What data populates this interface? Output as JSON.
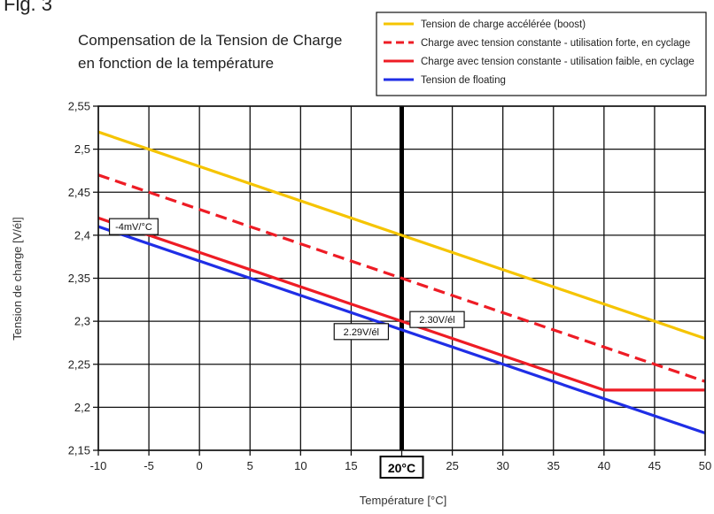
{
  "figure_label": "Fig. 3",
  "chart_data": {
    "type": "line",
    "title_lines": [
      "Compensation de la Tension de Charge",
      "en fonction de la température"
    ],
    "xlabel": "Température [°C]",
    "ylabel": "Tension de charge [V/él]",
    "xlim": [
      -10,
      50
    ],
    "ylim": [
      2.15,
      2.55
    ],
    "xticks": [
      -10,
      -5,
      0,
      5,
      10,
      15,
      20,
      25,
      30,
      35,
      40,
      45,
      50
    ],
    "xtick_labels": [
      "-10",
      "-5",
      "0",
      "5",
      "10",
      "15",
      "20°C",
      "25",
      "30",
      "35",
      "40",
      "45",
      "50"
    ],
    "yticks": [
      2.15,
      2.2,
      2.25,
      2.3,
      2.35,
      2.4,
      2.45,
      2.5,
      2.55
    ],
    "ytick_labels": [
      "2,15",
      "2,2",
      "2,25",
      "2,3",
      "2,35",
      "2,4",
      "2,45",
      "2,5",
      "2,55"
    ],
    "grid": true,
    "legend_position": "top-right",
    "reference_line": {
      "x": 20
    },
    "series": [
      {
        "name": "Tension de charge accélérée (boost)",
        "color": "#f5c400",
        "style": "solid",
        "points": [
          [
            -10,
            2.52
          ],
          [
            50,
            2.28
          ]
        ]
      },
      {
        "name": "Charge avec tension constante - utilisation forte, en cyclage",
        "color": "#ee1c25",
        "style": "dashed",
        "points": [
          [
            -10,
            2.47
          ],
          [
            50,
            2.23
          ]
        ]
      },
      {
        "name": "Charge avec tension constante - utilisation faible, en cyclage",
        "color": "#ee1c25",
        "style": "solid",
        "points": [
          [
            -10,
            2.42
          ],
          [
            40,
            2.22
          ],
          [
            50,
            2.22
          ]
        ]
      },
      {
        "name": "Tension de floating",
        "color": "#1f2ee6",
        "style": "solid",
        "points": [
          [
            -10,
            2.41
          ],
          [
            50,
            2.17
          ]
        ]
      }
    ],
    "annotations": [
      {
        "text": "-4mV/°C",
        "x": -6.5,
        "y": 2.41
      },
      {
        "text": "2.30V/él",
        "x": 23.5,
        "y": 2.302
      },
      {
        "text": "2.29V/él",
        "x": 16,
        "y": 2.288
      }
    ]
  }
}
